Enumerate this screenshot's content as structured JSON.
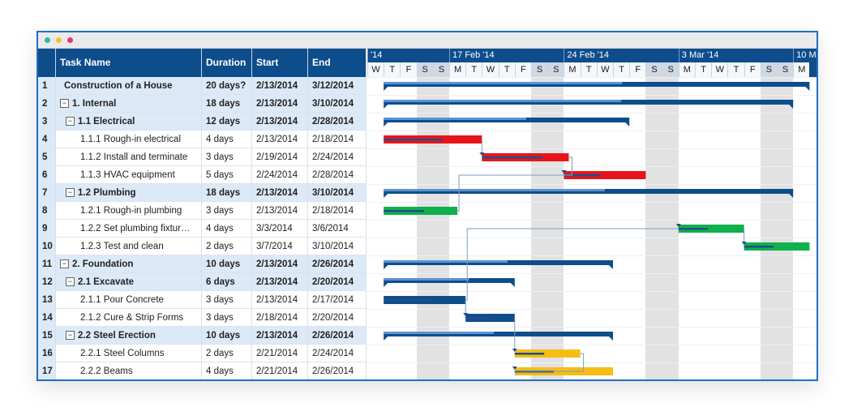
{
  "window": {
    "dots": [
      "#2fb7a6",
      "#f5c22a",
      "#e2338c"
    ]
  },
  "columns": {
    "task": "Task Name",
    "duration": "Duration",
    "start": "Start",
    "end": "End"
  },
  "rows": [
    {
      "num": "1",
      "name": "Construction of a House",
      "duration": "20 days?",
      "start": "2/13/2014",
      "end": "3/12/2014",
      "level": 0,
      "summary": true,
      "toggle": ""
    },
    {
      "num": "2",
      "name": "1. Internal",
      "duration": "18 days",
      "start": "2/13/2014",
      "end": "3/10/2014",
      "level": 0,
      "summary": true,
      "toggle": "⊟"
    },
    {
      "num": "3",
      "name": "1.1 Electrical",
      "duration": "12 days",
      "start": "2/13/2014",
      "end": "2/28/2014",
      "level": 1,
      "summary": true,
      "toggle": "⊟"
    },
    {
      "num": "4",
      "name": "1.1.1 Rough-in electrical",
      "duration": "4 days",
      "start": "2/13/2014",
      "end": "2/18/2014",
      "level": 2,
      "summary": false,
      "toggle": ""
    },
    {
      "num": "5",
      "name": "1.1.2 Install and terminate",
      "duration": "3 days",
      "start": "2/19/2014",
      "end": "2/24/2014",
      "level": 2,
      "summary": false,
      "toggle": ""
    },
    {
      "num": "6",
      "name": "1.1.3  HVAC equipment",
      "duration": "5 days",
      "start": "2/24/2014",
      "end": "2/28/2014",
      "level": 2,
      "summary": false,
      "toggle": ""
    },
    {
      "num": "7",
      "name": "1.2 Plumbing",
      "duration": "18 days",
      "start": "2/13/2014",
      "end": "3/10/2014",
      "level": 1,
      "summary": true,
      "toggle": "⊟"
    },
    {
      "num": "8",
      "name": "1.2.1 Rough-in plumbing",
      "duration": "3 days",
      "start": "2/13/2014",
      "end": "2/18/2014",
      "level": 2,
      "summary": false,
      "toggle": ""
    },
    {
      "num": "9",
      "name": "1.2.2 Set plumbing fixtur…",
      "duration": "4 days",
      "start": "3/3/2014",
      "end": "3/6/2014",
      "level": 2,
      "summary": false,
      "toggle": ""
    },
    {
      "num": "10",
      "name": "1.2.3 Test and clean",
      "duration": "2 days",
      "start": "3/7/2014",
      "end": "3/10/2014",
      "level": 2,
      "summary": false,
      "toggle": ""
    },
    {
      "num": "11",
      "name": "2. Foundation",
      "duration": "10 days",
      "start": "2/13/2014",
      "end": "2/26/2014",
      "level": 0,
      "summary": true,
      "toggle": "⊟"
    },
    {
      "num": "12",
      "name": "2.1 Excavate",
      "duration": "6 days",
      "start": "2/13/2014",
      "end": "2/20/2014",
      "level": 1,
      "summary": true,
      "toggle": "⊟"
    },
    {
      "num": "13",
      "name": "2.1.1 Pour Concrete",
      "duration": "3 days",
      "start": "2/13/2014",
      "end": "2/17/2014",
      "level": 2,
      "summary": false,
      "toggle": ""
    },
    {
      "num": "14",
      "name": "2.1.2 Cure & Strip Forms",
      "duration": "3 days",
      "start": "2/18/2014",
      "end": "2/20/2014",
      "level": 2,
      "summary": false,
      "toggle": ""
    },
    {
      "num": "15",
      "name": "2.2 Steel Erection",
      "duration": "10 days",
      "start": "2/13/2014",
      "end": "2/26/2014",
      "level": 1,
      "summary": true,
      "toggle": "⊟"
    },
    {
      "num": "16",
      "name": "2.2.1 Steel Columns",
      "duration": "2 days",
      "start": "2/21/2014",
      "end": "2/24/2014",
      "level": 2,
      "summary": false,
      "toggle": ""
    },
    {
      "num": "17",
      "name": "2.2.2 Beams",
      "duration": "4 days",
      "start": "2/21/2014",
      "end": "2/26/2014",
      "level": 2,
      "summary": false,
      "toggle": ""
    }
  ],
  "timeline": {
    "weeks": [
      "'14",
      "17 Feb '14",
      "24 Feb '14",
      "3 Mar '14",
      "10 M"
    ],
    "days": [
      "W",
      "T",
      "F",
      "S",
      "S",
      "M",
      "T",
      "W",
      "T",
      "F",
      "S",
      "S",
      "M",
      "T",
      "W",
      "T",
      "F",
      "S",
      "S",
      "M",
      "T",
      "W",
      "T",
      "F",
      "S",
      "S",
      "M"
    ]
  },
  "gantt": {
    "colors": {
      "summary": "#0e4d8c",
      "summary_progress": "#5a93d4",
      "electrical": "#e8141b",
      "plumbing": "#10b04a",
      "excavate": "#0e4d8c",
      "steel": "#f6bd15",
      "progress_line": "#1e4f8a"
    },
    "bars": [
      {
        "row": 0,
        "start_day": 1,
        "end_day": 27,
        "kind": "summary",
        "progress": 0.56
      },
      {
        "row": 1,
        "start_day": 1,
        "end_day": 26,
        "kind": "summary",
        "progress": 0.58
      },
      {
        "row": 2,
        "start_day": 1,
        "end_day": 16,
        "kind": "summary",
        "progress": 0.58
      },
      {
        "row": 3,
        "start_day": 1,
        "end_day": 7,
        "kind": "electrical",
        "progress": 0.6
      },
      {
        "row": 4,
        "start_day": 7,
        "end_day": 12.3,
        "kind": "electrical",
        "progress": 0.7
      },
      {
        "row": 5,
        "start_day": 12,
        "end_day": 17,
        "kind": "electrical",
        "progress": 0.45
      },
      {
        "row": 6,
        "start_day": 1,
        "end_day": 26,
        "kind": "summary",
        "progress": 0.54
      },
      {
        "row": 7,
        "start_day": 1,
        "end_day": 5.5,
        "kind": "plumbing",
        "progress": 0.55
      },
      {
        "row": 8,
        "start_day": 19,
        "end_day": 23,
        "kind": "plumbing",
        "progress": 0.45
      },
      {
        "row": 9,
        "start_day": 23,
        "end_day": 27,
        "kind": "plumbing",
        "progress": 0.45
      },
      {
        "row": 10,
        "start_day": 1,
        "end_day": 15,
        "kind": "summary",
        "progress": 0.54
      },
      {
        "row": 11,
        "start_day": 1,
        "end_day": 9,
        "kind": "summary",
        "progress": 0.65
      },
      {
        "row": 12,
        "start_day": 1,
        "end_day": 6,
        "kind": "excavate",
        "progress": 0.6
      },
      {
        "row": 13,
        "start_day": 6,
        "end_day": 9,
        "kind": "excavate",
        "progress": 0.5
      },
      {
        "row": 14,
        "start_day": 1,
        "end_day": 15,
        "kind": "summary",
        "progress": 0.48
      },
      {
        "row": 15,
        "start_day": 9,
        "end_day": 13,
        "kind": "steel",
        "progress": 0.45
      },
      {
        "row": 16,
        "start_day": 9,
        "end_day": 15,
        "kind": "steel",
        "progress": 0.4
      }
    ],
    "links": [
      {
        "from": 3,
        "to": 4
      },
      {
        "from": 4,
        "to": 5
      },
      {
        "from": 7,
        "to": 5
      },
      {
        "from": 8,
        "to": 9
      },
      {
        "from": 12,
        "to": 13
      },
      {
        "from": 12,
        "to": 8
      },
      {
        "from": 13,
        "to": 15
      },
      {
        "from": 15,
        "to": 16
      }
    ]
  }
}
